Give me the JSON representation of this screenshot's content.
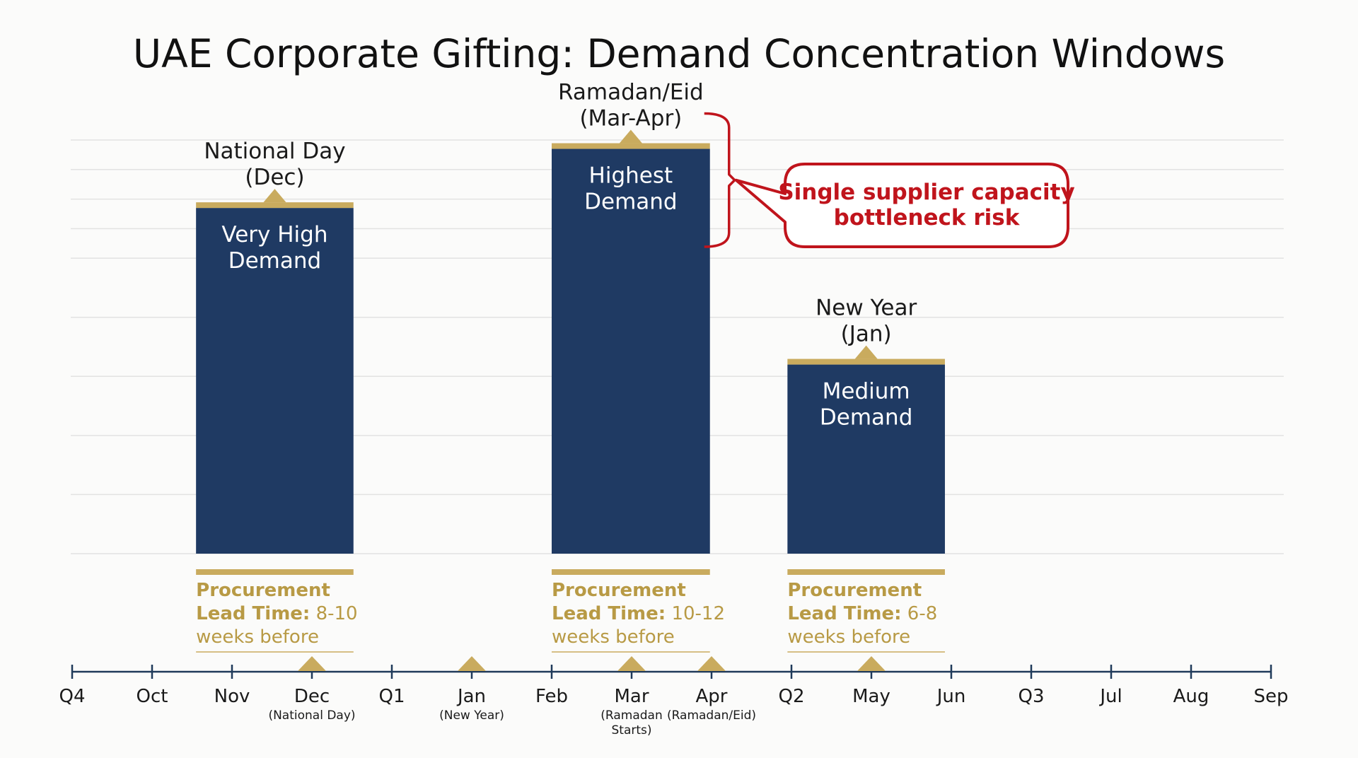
{
  "title": "UAE Corporate Gifting: Demand Concentration Windows",
  "colors": {
    "bar": "#1f3a63",
    "gold": "#c9ab5e",
    "gold_text": "#b89a45",
    "axis": "#1f3a5a",
    "grid": "#e2e2e2",
    "callout": "#c0141c",
    "background": "#fbfbfa"
  },
  "chart_data": {
    "type": "bar",
    "title": "UAE Corporate Gifting: Demand Concentration Windows",
    "xlabel": "",
    "ylabel": "",
    "grid": true,
    "ylim": [
      0,
      7
    ],
    "x_axis": {
      "ticks": [
        {
          "label": "Q4",
          "sub": []
        },
        {
          "label": "Oct",
          "sub": []
        },
        {
          "label": "Nov",
          "sub": []
        },
        {
          "label": "Dec",
          "sub": [
            "(National Day)"
          ]
        },
        {
          "label": "Q1",
          "sub": []
        },
        {
          "label": "Jan",
          "sub": [
            "(New Year)"
          ]
        },
        {
          "label": "Feb",
          "sub": []
        },
        {
          "label": "Mar",
          "sub": [
            "(Ramadan",
            "Starts)"
          ]
        },
        {
          "label": "Apr",
          "sub": [
            "(Ramadan/Eid)"
          ]
        },
        {
          "label": "Q2",
          "sub": []
        },
        {
          "label": "May",
          "sub": []
        },
        {
          "label": "Jun",
          "sub": []
        },
        {
          "label": "Q3",
          "sub": []
        },
        {
          "label": "Jul",
          "sub": []
        },
        {
          "label": "Aug",
          "sub": []
        },
        {
          "label": "Sep",
          "sub": []
        }
      ],
      "markers": [
        3,
        5,
        7,
        8,
        10
      ]
    },
    "bars": [
      {
        "event": [
          "National Day",
          "(Dec)"
        ],
        "level": [
          "Very High",
          "Demand"
        ],
        "value": 5.85,
        "start": 1.55,
        "end": 3.52,
        "procurement": {
          "line1": "Procurement",
          "bold": "Lead Time:",
          "rest": " 8-10",
          "line3": "weeks before"
        }
      },
      {
        "event": [
          "Ramadan/Eid",
          "(Mar-Apr)"
        ],
        "level": [
          "Highest",
          "Demand"
        ],
        "value": 6.85,
        "start": 6.0,
        "end": 7.98,
        "procurement": {
          "line1": "Procurement",
          "bold": "Lead Time:",
          "rest": " 10-12",
          "line3": "weeks before"
        }
      },
      {
        "event": [
          "New Year",
          "(Jan)"
        ],
        "level": [
          "Medium",
          "Demand"
        ],
        "value": 3.2,
        "start": 8.95,
        "end": 10.92,
        "procurement": {
          "line1": "Procurement",
          "bold": "Lead Time:",
          "rest": " 6-8",
          "line3": "weeks before"
        }
      }
    ],
    "annotation": {
      "text": [
        "Single supplier capacity",
        "bottleneck risk"
      ],
      "target_bar": 1
    }
  }
}
